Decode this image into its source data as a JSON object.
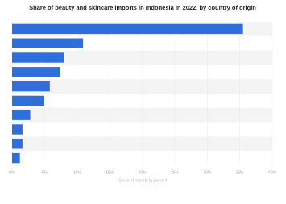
{
  "chart_data": {
    "type": "bar",
    "orientation": "horizontal",
    "title": "Share of beauty and skincare imports in Indonesia in 2022, by country of origin",
    "x_label": "Share of imports in percent",
    "categories": [
      null,
      null,
      null,
      null,
      null,
      null,
      null,
      null,
      null,
      null
    ],
    "values": [
      35.5,
      10.9,
      8.0,
      7.4,
      5.8,
      4.9,
      2.8,
      1.6,
      1.6,
      1.2
    ],
    "color": "#2f6fdb",
    "xlim": [
      0,
      40
    ],
    "xticks": [
      {
        "value": 0,
        "label": "0%"
      },
      {
        "value": 5,
        "label": "5%"
      },
      {
        "value": 10,
        "label": "10%"
      },
      {
        "value": 15,
        "label": "15%"
      },
      {
        "value": 20,
        "label": "20%"
      },
      {
        "value": 25,
        "label": "25%"
      },
      {
        "value": 30,
        "label": "30%"
      },
      {
        "value": 35,
        "label": "35%"
      },
      {
        "value": 40,
        "label": "40%"
      }
    ],
    "grid": true
  }
}
